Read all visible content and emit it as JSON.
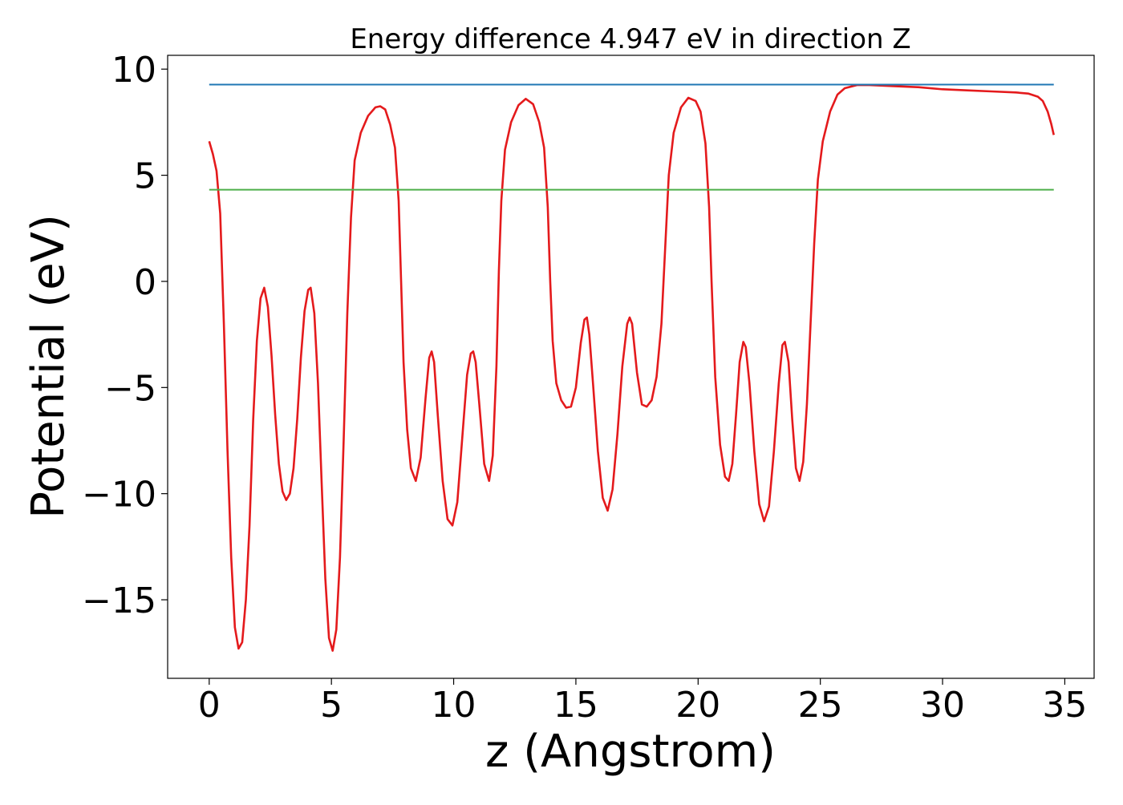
{
  "chart_data": {
    "type": "line",
    "title": "Energy difference 4.947 eV in direction Z",
    "xlabel": "z (Angstrom)",
    "ylabel": "Potential (eV)",
    "xlim": [
      -1.7,
      36.2
    ],
    "ylim": [
      -18.7,
      10.65
    ],
    "xticks": [
      {
        "value": 0,
        "label": "0"
      },
      {
        "value": 5,
        "label": "5"
      },
      {
        "value": 10,
        "label": "10"
      },
      {
        "value": 15,
        "label": "15"
      },
      {
        "value": 20,
        "label": "20"
      },
      {
        "value": 25,
        "label": "25"
      },
      {
        "value": 30,
        "label": "30"
      },
      {
        "value": 35,
        "label": "35"
      }
    ],
    "yticks": [
      {
        "value": 10,
        "label": "10"
      },
      {
        "value": 5,
        "label": "5"
      },
      {
        "value": 0,
        "label": "0"
      },
      {
        "value": -5,
        "label": "−5"
      },
      {
        "value": -10,
        "label": "−10"
      },
      {
        "value": -15,
        "label": "−15"
      }
    ],
    "grid": false,
    "legend": "none",
    "series": [
      {
        "color": "#e41a1c",
        "points": [
          [
            0.0,
            6.6
          ],
          [
            0.15,
            6.0
          ],
          [
            0.3,
            5.2
          ],
          [
            0.45,
            3.2
          ],
          [
            0.6,
            -2.0
          ],
          [
            0.75,
            -8.0
          ],
          [
            0.9,
            -13.0
          ],
          [
            1.05,
            -16.3
          ],
          [
            1.2,
            -17.3
          ],
          [
            1.35,
            -17.0
          ],
          [
            1.5,
            -15.0
          ],
          [
            1.65,
            -11.5
          ],
          [
            1.8,
            -6.5
          ],
          [
            1.95,
            -2.8
          ],
          [
            2.1,
            -0.8
          ],
          [
            2.25,
            -0.3
          ],
          [
            2.4,
            -1.2
          ],
          [
            2.55,
            -3.5
          ],
          [
            2.7,
            -6.3
          ],
          [
            2.85,
            -8.6
          ],
          [
            3.0,
            -9.9
          ],
          [
            3.15,
            -10.3
          ],
          [
            3.3,
            -10.0
          ],
          [
            3.45,
            -8.8
          ],
          [
            3.6,
            -6.5
          ],
          [
            3.75,
            -3.6
          ],
          [
            3.9,
            -1.4
          ],
          [
            4.05,
            -0.4
          ],
          [
            4.15,
            -0.3
          ],
          [
            4.3,
            -1.5
          ],
          [
            4.45,
            -4.8
          ],
          [
            4.6,
            -9.5
          ],
          [
            4.75,
            -14.0
          ],
          [
            4.9,
            -16.8
          ],
          [
            5.05,
            -17.4
          ],
          [
            5.2,
            -16.4
          ],
          [
            5.35,
            -13.0
          ],
          [
            5.5,
            -7.5
          ],
          [
            5.65,
            -1.5
          ],
          [
            5.8,
            3.0
          ],
          [
            5.95,
            5.7
          ],
          [
            6.2,
            7.0
          ],
          [
            6.5,
            7.8
          ],
          [
            6.8,
            8.2
          ],
          [
            7.0,
            8.25
          ],
          [
            7.2,
            8.1
          ],
          [
            7.4,
            7.4
          ],
          [
            7.6,
            6.3
          ],
          [
            7.75,
            3.8
          ],
          [
            7.85,
            0.0
          ],
          [
            7.95,
            -3.8
          ],
          [
            8.1,
            -7.0
          ],
          [
            8.25,
            -8.8
          ],
          [
            8.45,
            -9.4
          ],
          [
            8.65,
            -8.3
          ],
          [
            8.85,
            -5.5
          ],
          [
            9.0,
            -3.6
          ],
          [
            9.1,
            -3.3
          ],
          [
            9.2,
            -3.8
          ],
          [
            9.35,
            -6.3
          ],
          [
            9.55,
            -9.4
          ],
          [
            9.75,
            -11.2
          ],
          [
            9.95,
            -11.5
          ],
          [
            10.15,
            -10.4
          ],
          [
            10.35,
            -7.4
          ],
          [
            10.55,
            -4.4
          ],
          [
            10.7,
            -3.4
          ],
          [
            10.8,
            -3.3
          ],
          [
            10.9,
            -3.8
          ],
          [
            11.05,
            -5.8
          ],
          [
            11.25,
            -8.6
          ],
          [
            11.45,
            -9.4
          ],
          [
            11.6,
            -8.2
          ],
          [
            11.75,
            -4.0
          ],
          [
            11.85,
            0.5
          ],
          [
            11.95,
            3.8
          ],
          [
            12.1,
            6.2
          ],
          [
            12.35,
            7.5
          ],
          [
            12.65,
            8.3
          ],
          [
            12.95,
            8.6
          ],
          [
            13.25,
            8.35
          ],
          [
            13.5,
            7.5
          ],
          [
            13.7,
            6.3
          ],
          [
            13.85,
            3.5
          ],
          [
            13.95,
            0.0
          ],
          [
            14.05,
            -2.8
          ],
          [
            14.2,
            -4.8
          ],
          [
            14.4,
            -5.6
          ],
          [
            14.6,
            -5.95
          ],
          [
            14.8,
            -5.9
          ],
          [
            15.0,
            -5.0
          ],
          [
            15.2,
            -2.9
          ],
          [
            15.35,
            -1.8
          ],
          [
            15.45,
            -1.7
          ],
          [
            15.55,
            -2.5
          ],
          [
            15.7,
            -4.8
          ],
          [
            15.9,
            -8.0
          ],
          [
            16.1,
            -10.2
          ],
          [
            16.3,
            -10.8
          ],
          [
            16.5,
            -9.8
          ],
          [
            16.7,
            -7.2
          ],
          [
            16.9,
            -4.0
          ],
          [
            17.1,
            -2.0
          ],
          [
            17.2,
            -1.7
          ],
          [
            17.3,
            -2.0
          ],
          [
            17.5,
            -4.3
          ],
          [
            17.7,
            -5.8
          ],
          [
            17.9,
            -5.9
          ],
          [
            18.1,
            -5.6
          ],
          [
            18.3,
            -4.5
          ],
          [
            18.5,
            -2.0
          ],
          [
            18.65,
            1.5
          ],
          [
            18.8,
            5.0
          ],
          [
            19.0,
            7.0
          ],
          [
            19.3,
            8.2
          ],
          [
            19.6,
            8.65
          ],
          [
            19.9,
            8.5
          ],
          [
            20.1,
            8.0
          ],
          [
            20.3,
            6.5
          ],
          [
            20.45,
            3.5
          ],
          [
            20.55,
            0.0
          ],
          [
            20.7,
            -4.5
          ],
          [
            20.9,
            -7.7
          ],
          [
            21.1,
            -9.2
          ],
          [
            21.25,
            -9.4
          ],
          [
            21.4,
            -8.6
          ],
          [
            21.55,
            -6.3
          ],
          [
            21.7,
            -3.8
          ],
          [
            21.85,
            -2.85
          ],
          [
            21.95,
            -3.1
          ],
          [
            22.1,
            -4.8
          ],
          [
            22.3,
            -8.0
          ],
          [
            22.5,
            -10.5
          ],
          [
            22.7,
            -11.3
          ],
          [
            22.9,
            -10.6
          ],
          [
            23.1,
            -8.0
          ],
          [
            23.3,
            -4.8
          ],
          [
            23.45,
            -3.0
          ],
          [
            23.55,
            -2.85
          ],
          [
            23.7,
            -3.8
          ],
          [
            23.85,
            -6.5
          ],
          [
            24.0,
            -8.8
          ],
          [
            24.15,
            -9.4
          ],
          [
            24.3,
            -8.5
          ],
          [
            24.45,
            -5.8
          ],
          [
            24.6,
            -2.0
          ],
          [
            24.75,
            1.8
          ],
          [
            24.9,
            4.8
          ],
          [
            25.1,
            6.6
          ],
          [
            25.4,
            8.0
          ],
          [
            25.7,
            8.8
          ],
          [
            26.0,
            9.1
          ],
          [
            26.5,
            9.25
          ],
          [
            27.0,
            9.25
          ],
          [
            28.0,
            9.2
          ],
          [
            29.0,
            9.15
          ],
          [
            30.0,
            9.05
          ],
          [
            31.0,
            9.0
          ],
          [
            32.0,
            8.95
          ],
          [
            33.0,
            8.9
          ],
          [
            33.5,
            8.85
          ],
          [
            33.9,
            8.7
          ],
          [
            34.1,
            8.5
          ],
          [
            34.3,
            8.0
          ],
          [
            34.45,
            7.4
          ],
          [
            34.55,
            6.9
          ]
        ]
      },
      {
        "color": "#1f77b4",
        "points": [
          [
            0.0,
            9.27
          ],
          [
            34.55,
            9.27
          ]
        ]
      },
      {
        "color": "#4daf4a",
        "points": [
          [
            0.0,
            4.32
          ],
          [
            34.55,
            4.32
          ]
        ]
      }
    ]
  }
}
